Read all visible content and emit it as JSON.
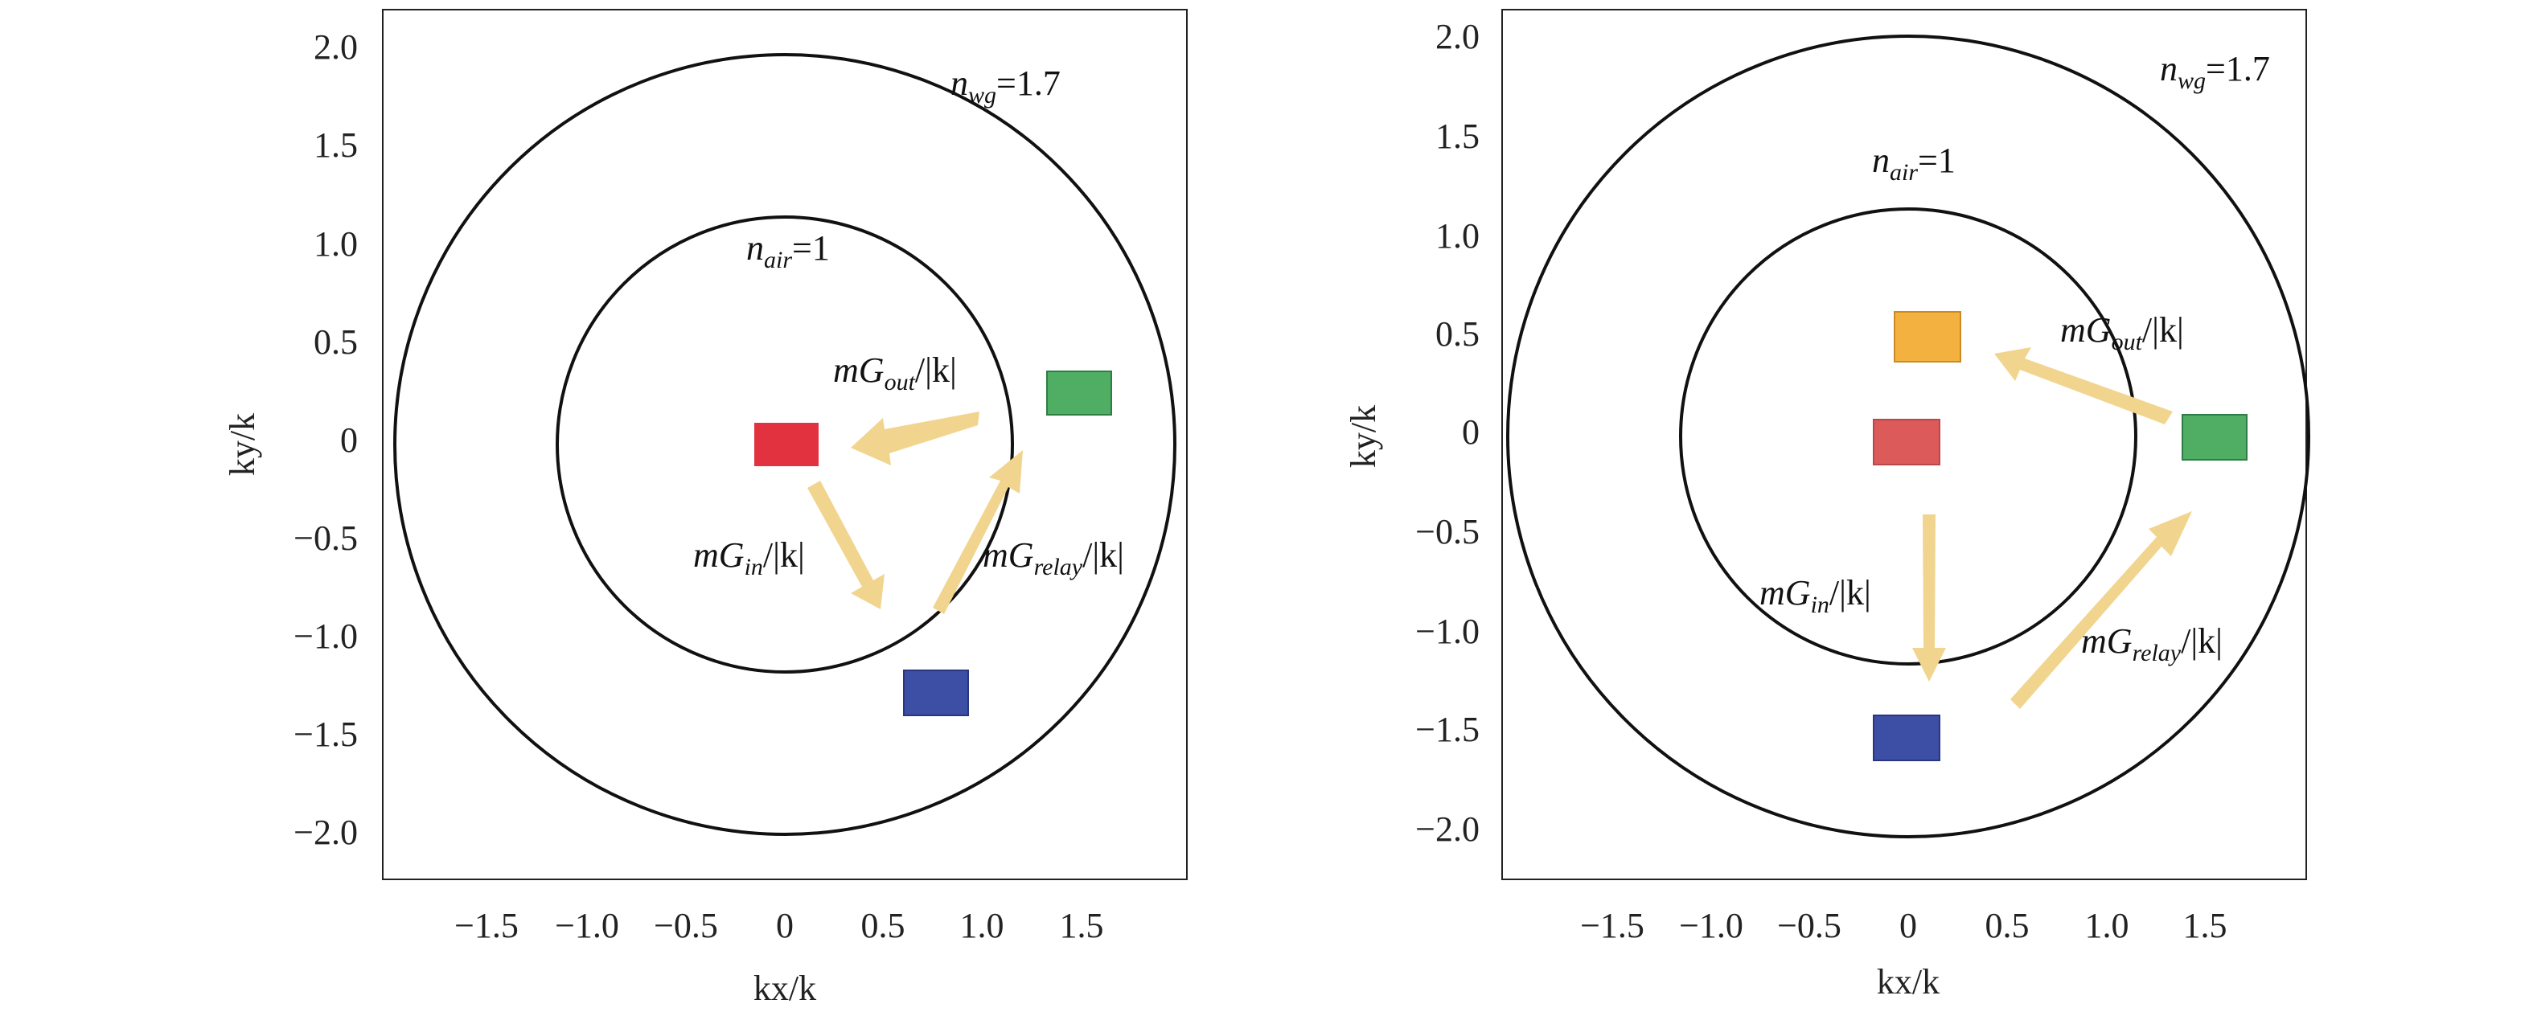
{
  "panels": [
    {
      "id": "left",
      "x_label": "kx/k",
      "y_label": "ky/k",
      "x_ticks": [
        "−1.5",
        "−1.0",
        "−0.5",
        "0",
        "0.5",
        "1.0",
        "1.5"
      ],
      "x_tick_values": [
        -1.5,
        -1.0,
        -0.5,
        0,
        0.5,
        1.0,
        1.5
      ],
      "y_ticks": [
        "2.0",
        "1.5",
        "1.0",
        "0.5",
        "0",
        "−0.5",
        "−1.0",
        "−1.5",
        "−2.0"
      ],
      "y_tick_values": [
        2.0,
        1.5,
        1.0,
        0.5,
        0,
        -0.5,
        -1.0,
        -1.5,
        -2.0
      ],
      "circles": [
        {
          "radius": 1.0,
          "label": {
            "main": "n",
            "sub": "air",
            "rest": "=1"
          }
        },
        {
          "radius": 1.7,
          "label": {
            "main": "n",
            "sub": "wg",
            "rest": "=1.7"
          }
        }
      ],
      "points": [
        {
          "name": "red-square",
          "x": 0.0,
          "y": 0.0,
          "color": "#e2323f"
        },
        {
          "name": "green-square",
          "x": 1.5,
          "y": 0.25,
          "color": "#4fae63"
        },
        {
          "name": "blue-square",
          "x": 0.75,
          "y": -1.3,
          "color": "#3d4fa5"
        }
      ],
      "vectors": [
        {
          "name": "g-in",
          "label": {
            "pre": "mG",
            "sub": "in",
            "post": "/|k|"
          }
        },
        {
          "name": "g-relay",
          "label": {
            "pre": "mG",
            "sub": "relay",
            "post": "/|k|"
          }
        },
        {
          "name": "g-out",
          "label": {
            "pre": "mG",
            "sub": "out",
            "post": "/|k|"
          }
        }
      ]
    },
    {
      "id": "right",
      "x_label": "kx/k",
      "y_label": "ky/k",
      "x_ticks": [
        "−1.5",
        "−1.0",
        "−0.5",
        "0",
        "0.5",
        "1.0",
        "1.5"
      ],
      "x_tick_values": [
        -1.5,
        -1.0,
        -0.5,
        0,
        0.5,
        1.0,
        1.5
      ],
      "y_ticks": [
        "2.0",
        "1.5",
        "1.0",
        "0.5",
        "0",
        "−0.5",
        "−1.0",
        "−1.5",
        "−2.0"
      ],
      "y_tick_values": [
        2.0,
        1.5,
        1.0,
        0.5,
        0,
        -0.5,
        -1.0,
        -1.5,
        -2.0
      ],
      "circles": [
        {
          "radius": 1.2,
          "label": {
            "main": "n",
            "sub": "air",
            "rest": "=1"
          }
        },
        {
          "radius": 2.05,
          "label": {
            "main": "n",
            "sub": "wg",
            "rest": "=1.7"
          }
        }
      ],
      "points": [
        {
          "name": "orange-square",
          "x": 0.0,
          "y": 0.5,
          "color": "#f3b23f"
        },
        {
          "name": "red-square",
          "x": 0.0,
          "y": 0.0,
          "color": "#dd5a5a"
        },
        {
          "name": "green-square",
          "x": 1.6,
          "y": 0.0,
          "color": "#4fae63"
        },
        {
          "name": "blue-square",
          "x": 0.0,
          "y": -1.55,
          "color": "#3d4fa5"
        }
      ],
      "vectors": [
        {
          "name": "g-in",
          "label": {
            "pre": "mG",
            "sub": "in",
            "post": "/|k|"
          }
        },
        {
          "name": "g-relay",
          "label": {
            "pre": "mG",
            "sub": "relay",
            "post": "/|k|"
          }
        },
        {
          "name": "g-out",
          "label": {
            "pre": "mG",
            "sub": "out",
            "post": "/|k|"
          }
        }
      ]
    }
  ]
}
